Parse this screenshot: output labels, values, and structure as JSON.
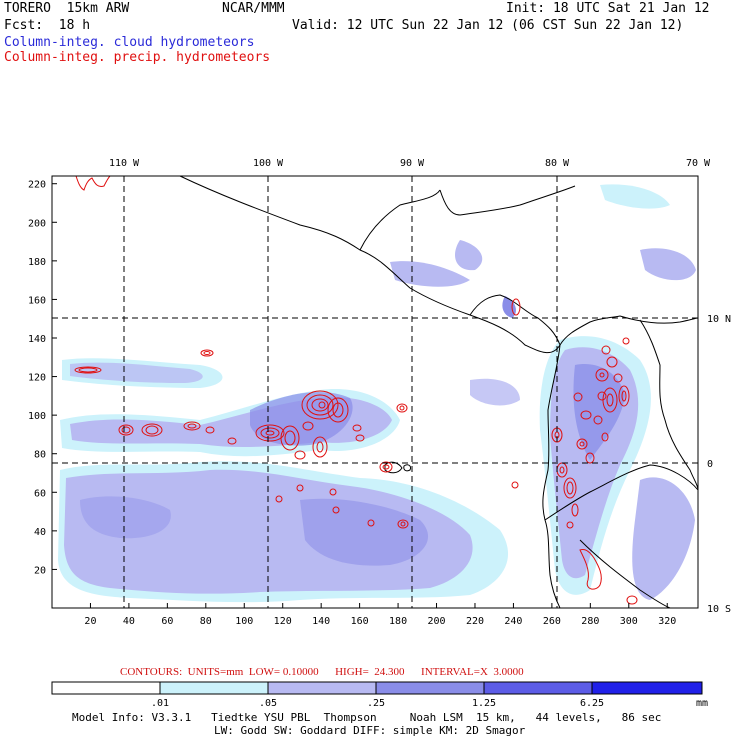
{
  "header": {
    "model": "TORERO  15km ARW",
    "org": "NCAR/MMM",
    "init": "Init: 18 UTC Sat 21 Jan 12",
    "fcst": "Fcst:  18 h",
    "valid": "Valid: 12 UTC Sun 22 Jan 12 (06 CST Sun 22 Jan 12)",
    "field1": "Column-integ. cloud hydrometeors",
    "field2": "Column-integ. precip. hydrometeors"
  },
  "map": {
    "top_lon_labels": [
      "110 W",
      "100 W",
      "90 W",
      "80 W",
      "70 W"
    ],
    "right_lat_labels": [
      "10 N",
      "0",
      "10 S"
    ],
    "x_ticks": [
      "20",
      "40",
      "60",
      "80",
      "100",
      "120",
      "140",
      "160",
      "180",
      "200",
      "220",
      "240",
      "260",
      "280",
      "300",
      "320"
    ],
    "y_ticks": [
      "20",
      "40",
      "60",
      "80",
      "100",
      "120",
      "140",
      "160",
      "180",
      "200",
      "220"
    ],
    "colors": {
      "cloud_light": "#ccf2fb",
      "cloud_mid": "#b8baf2",
      "cloud_dark": "#8a8de8",
      "precip_contour": "#e01010",
      "coast": "#000000"
    }
  },
  "contours_label": "CONTOURS:  UNITS=mm  LOW= 0.10000      HIGH=  24.300      INTERVAL=X  3.0000",
  "colorbar": {
    "labels": [
      ".01",
      ".05",
      ".25",
      "1.25",
      "6.25"
    ],
    "units": "mm",
    "colors": [
      "#ffffff",
      "#ccf2fb",
      "#b8baf2",
      "#8a8de8",
      "#5c5ce6",
      "#2020e8"
    ]
  },
  "footer": {
    "line1": "Model Info: V3.3.1   Tiedtke YSU PBL  Thompson     Noah LSM  15 km,   44 levels,   86 sec",
    "line2": "LW: Godd SW: Goddard DIFF: simple KM: 2D Smagor"
  }
}
